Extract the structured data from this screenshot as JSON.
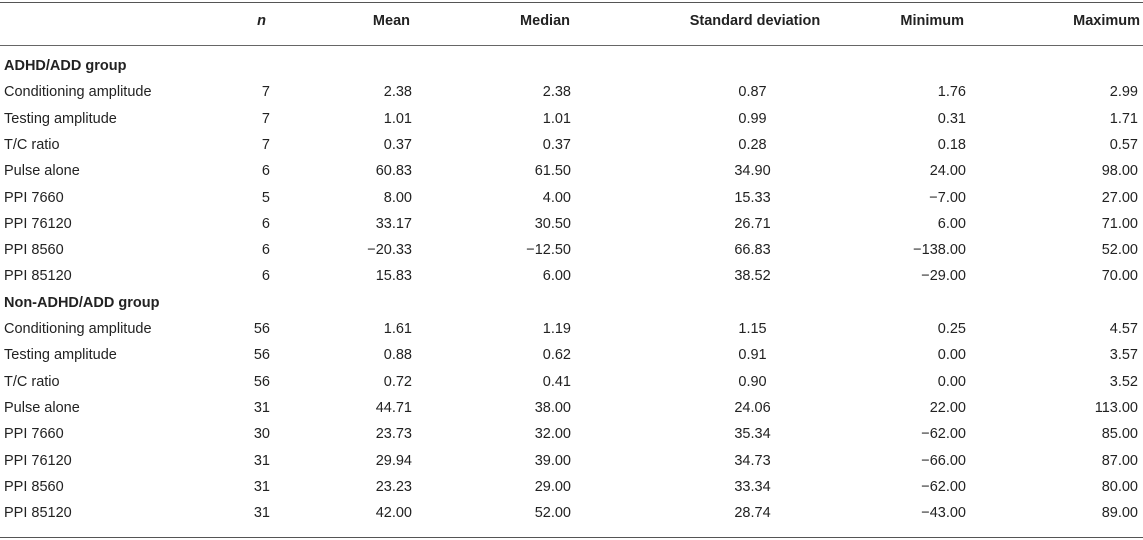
{
  "headers": {
    "label": "",
    "n": "n",
    "mean": "Mean",
    "median": "Median",
    "sd": "Standard deviation",
    "min": "Minimum",
    "max": "Maximum"
  },
  "groups": [
    {
      "title": "ADHD/ADD group",
      "rows": [
        {
          "label": "Conditioning amplitude",
          "n": "7",
          "mean": "2.38",
          "median": "2.38",
          "sd": "0.87",
          "min": "1.76",
          "max": "2.99"
        },
        {
          "label": "Testing amplitude",
          "n": "7",
          "mean": "1.01",
          "median": "1.01",
          "sd": "0.99",
          "min": "0.31",
          "max": "1.71"
        },
        {
          "label": "T/C ratio",
          "n": "7",
          "mean": "0.37",
          "median": "0.37",
          "sd": "0.28",
          "min": "0.18",
          "max": "0.57"
        },
        {
          "label": "Pulse alone",
          "n": "6",
          "mean": "60.83",
          "median": "61.50",
          "sd": "34.90",
          "min": "24.00",
          "max": "98.00"
        },
        {
          "label": "PPI 7660",
          "n": "5",
          "mean": "8.00",
          "median": "4.00",
          "sd": "15.33",
          "min": "−7.00",
          "max": "27.00"
        },
        {
          "label": "PPI 76120",
          "n": "6",
          "mean": "33.17",
          "median": "30.50",
          "sd": "26.71",
          "min": "6.00",
          "max": "71.00"
        },
        {
          "label": "PPI 8560",
          "n": "6",
          "mean": "−20.33",
          "median": "−12.50",
          "sd": "66.83",
          "min": "−138.00",
          "max": "52.00"
        },
        {
          "label": "PPI 85120",
          "n": "6",
          "mean": "15.83",
          "median": "6.00",
          "sd": "38.52",
          "min": "−29.00",
          "max": "70.00"
        }
      ]
    },
    {
      "title": "Non-ADHD/ADD group",
      "rows": [
        {
          "label": "Conditioning amplitude",
          "n": "56",
          "mean": "1.61",
          "median": "1.19",
          "sd": "1.15",
          "min": "0.25",
          "max": "4.57"
        },
        {
          "label": "Testing amplitude",
          "n": "56",
          "mean": "0.88",
          "median": "0.62",
          "sd": "0.91",
          "min": "0.00",
          "max": "3.57"
        },
        {
          "label": "T/C ratio",
          "n": "56",
          "mean": "0.72",
          "median": "0.41",
          "sd": "0.90",
          "min": "0.00",
          "max": "3.52"
        },
        {
          "label": "Pulse alone",
          "n": "31",
          "mean": "44.71",
          "median": "38.00",
          "sd": "24.06",
          "min": "22.00",
          "max": "113.00"
        },
        {
          "label": "PPI 7660",
          "n": "30",
          "mean": "23.73",
          "median": "32.00",
          "sd": "35.34",
          "min": "−62.00",
          "max": "85.00"
        },
        {
          "label": "PPI 76120",
          "n": "31",
          "mean": "29.94",
          "median": "39.00",
          "sd": "34.73",
          "min": "−66.00",
          "max": "87.00"
        },
        {
          "label": "PPI 8560",
          "n": "31",
          "mean": "23.23",
          "median": "29.00",
          "sd": "33.34",
          "min": "−62.00",
          "max": "80.00"
        },
        {
          "label": "PPI 85120",
          "n": "31",
          "mean": "42.00",
          "median": "52.00",
          "sd": "28.74",
          "min": "−43.00",
          "max": "89.00"
        }
      ]
    }
  ]
}
